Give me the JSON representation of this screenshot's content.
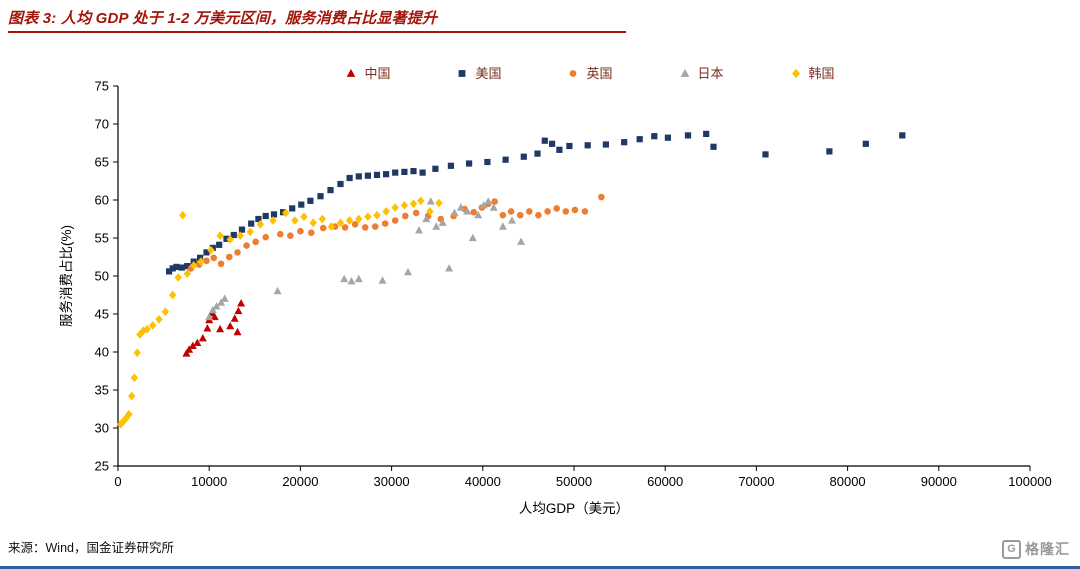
{
  "page": {
    "title_color": "#A31508",
    "source": "来源：Wind，国金证券研究所",
    "logo_text": "格隆汇",
    "logo_icon_letter": "G",
    "bottom_bar_color": "#2E5FA3"
  },
  "chart_data": {
    "type": "scatter",
    "title": "图表 3: 人均 GDP 处于 1-2 万美元区间，服务消费占比显著提升",
    "xlabel": "人均GDP（美元）",
    "ylabel": "服务消费占比(%)",
    "xlim": [
      0,
      100000
    ],
    "ylim": [
      25,
      75
    ],
    "x_ticks": [
      0,
      10000,
      20000,
      30000,
      40000,
      50000,
      60000,
      70000,
      80000,
      90000,
      100000
    ],
    "y_ticks": [
      25,
      30,
      35,
      40,
      45,
      50,
      55,
      60,
      65,
      70,
      75
    ],
    "grid": false,
    "legend_position": "top",
    "legend_text_color": "#7A2E1D",
    "series": [
      {
        "name": "中国",
        "marker": "triangle",
        "color": "#C00000",
        "points": [
          [
            7500,
            39.8
          ],
          [
            7800,
            40.3
          ],
          [
            8200,
            40.8
          ],
          [
            8700,
            41.2
          ],
          [
            9300,
            41.8
          ],
          [
            9800,
            43.1
          ],
          [
            10000,
            44.2
          ],
          [
            10300,
            45.1
          ],
          [
            10600,
            44.6
          ],
          [
            11200,
            43.0
          ],
          [
            12300,
            43.4
          ],
          [
            12800,
            44.4
          ],
          [
            13100,
            42.6
          ],
          [
            13200,
            45.4
          ],
          [
            13500,
            46.4
          ]
        ]
      },
      {
        "name": "美国",
        "marker": "square",
        "color": "#1F3864",
        "points": [
          [
            5600,
            50.6
          ],
          [
            6000,
            51.0
          ],
          [
            6400,
            51.2
          ],
          [
            7000,
            51.1
          ],
          [
            7600,
            51.3
          ],
          [
            8300,
            51.9
          ],
          [
            9000,
            52.4
          ],
          [
            9700,
            53.1
          ],
          [
            10400,
            53.7
          ],
          [
            11100,
            54.1
          ],
          [
            11900,
            54.9
          ],
          [
            12700,
            55.4
          ],
          [
            13600,
            56.1
          ],
          [
            14600,
            56.9
          ],
          [
            15400,
            57.5
          ],
          [
            16200,
            57.9
          ],
          [
            17100,
            58.1
          ],
          [
            18100,
            58.4
          ],
          [
            19100,
            58.9
          ],
          [
            20100,
            59.4
          ],
          [
            21100,
            59.9
          ],
          [
            22200,
            60.5
          ],
          [
            23300,
            61.3
          ],
          [
            24400,
            62.1
          ],
          [
            25400,
            62.9
          ],
          [
            26400,
            63.1
          ],
          [
            27400,
            63.2
          ],
          [
            28400,
            63.3
          ],
          [
            29400,
            63.4
          ],
          [
            30400,
            63.6
          ],
          [
            31400,
            63.7
          ],
          [
            32400,
            63.8
          ],
          [
            33400,
            63.6
          ],
          [
            34800,
            64.1
          ],
          [
            36500,
            64.5
          ],
          [
            38500,
            64.8
          ],
          [
            40500,
            65.0
          ],
          [
            42500,
            65.3
          ],
          [
            44500,
            65.7
          ],
          [
            46000,
            66.1
          ],
          [
            46800,
            67.8
          ],
          [
            47600,
            67.4
          ],
          [
            48400,
            66.6
          ],
          [
            49500,
            67.1
          ],
          [
            51500,
            67.2
          ],
          [
            53500,
            67.3
          ],
          [
            55500,
            67.6
          ],
          [
            57200,
            68.0
          ],
          [
            58800,
            68.4
          ],
          [
            60300,
            68.2
          ],
          [
            62500,
            68.5
          ],
          [
            64500,
            68.7
          ],
          [
            65300,
            67.0
          ],
          [
            71000,
            66.0
          ],
          [
            78000,
            66.4
          ],
          [
            82000,
            67.4
          ],
          [
            86000,
            68.5
          ]
        ]
      },
      {
        "name": "英国",
        "marker": "circle",
        "color": "#ED7D31",
        "points": [
          [
            8000,
            51.0
          ],
          [
            8900,
            51.5
          ],
          [
            9700,
            52.0
          ],
          [
            10500,
            52.4
          ],
          [
            11300,
            51.6
          ],
          [
            12200,
            52.5
          ],
          [
            13100,
            53.1
          ],
          [
            14100,
            54.0
          ],
          [
            15100,
            54.5
          ],
          [
            16200,
            55.1
          ],
          [
            17800,
            55.5
          ],
          [
            18900,
            55.3
          ],
          [
            20000,
            55.9
          ],
          [
            21200,
            55.7
          ],
          [
            22500,
            56.3
          ],
          [
            23800,
            56.5
          ],
          [
            24900,
            56.4
          ],
          [
            26000,
            56.8
          ],
          [
            27100,
            56.4
          ],
          [
            28200,
            56.5
          ],
          [
            29300,
            56.9
          ],
          [
            30400,
            57.3
          ],
          [
            31500,
            57.9
          ],
          [
            32700,
            58.3
          ],
          [
            34000,
            57.9
          ],
          [
            35400,
            57.5
          ],
          [
            36800,
            57.9
          ],
          [
            38000,
            58.8
          ],
          [
            39000,
            58.4
          ],
          [
            39900,
            59.0
          ],
          [
            40600,
            59.5
          ],
          [
            41300,
            59.8
          ],
          [
            42200,
            58.0
          ],
          [
            43100,
            58.5
          ],
          [
            44100,
            58.0
          ],
          [
            45100,
            58.5
          ],
          [
            46100,
            58.0
          ],
          [
            47100,
            58.5
          ],
          [
            48100,
            58.9
          ],
          [
            49100,
            58.5
          ],
          [
            50100,
            58.7
          ],
          [
            51200,
            58.5
          ],
          [
            53000,
            60.4
          ]
        ]
      },
      {
        "name": "日本",
        "marker": "triangle",
        "color": "#A6A6A6",
        "points": [
          [
            10000,
            44.6
          ],
          [
            10400,
            45.5
          ],
          [
            10800,
            46.0
          ],
          [
            11300,
            46.5
          ],
          [
            11700,
            47.0
          ],
          [
            17500,
            48.0
          ],
          [
            24800,
            49.6
          ],
          [
            25600,
            49.3
          ],
          [
            26400,
            49.6
          ],
          [
            29000,
            49.4
          ],
          [
            31800,
            50.5
          ],
          [
            33000,
            56.0
          ],
          [
            33800,
            57.5
          ],
          [
            34300,
            59.8
          ],
          [
            34900,
            56.5
          ],
          [
            35600,
            57.0
          ],
          [
            36300,
            51.0
          ],
          [
            36900,
            58.3
          ],
          [
            37600,
            59.0
          ],
          [
            38300,
            58.5
          ],
          [
            38900,
            55.0
          ],
          [
            39500,
            58.0
          ],
          [
            40100,
            59.3
          ],
          [
            40600,
            59.8
          ],
          [
            41200,
            59.0
          ],
          [
            42200,
            56.5
          ],
          [
            43200,
            57.3
          ],
          [
            44200,
            54.5
          ]
        ]
      },
      {
        "name": "韩国",
        "marker": "diamond",
        "color": "#FFC000",
        "points": [
          [
            300,
            30.5
          ],
          [
            600,
            30.9
          ],
          [
            900,
            31.3
          ],
          [
            1200,
            31.8
          ],
          [
            1500,
            34.2
          ],
          [
            1800,
            36.6
          ],
          [
            2100,
            39.9
          ],
          [
            2400,
            42.3
          ],
          [
            2800,
            42.8
          ],
          [
            3200,
            43.0
          ],
          [
            3800,
            43.5
          ],
          [
            4500,
            44.3
          ],
          [
            5200,
            45.3
          ],
          [
            6000,
            47.5
          ],
          [
            6600,
            49.8
          ],
          [
            7100,
            58.0
          ],
          [
            7600,
            50.3
          ],
          [
            8300,
            51.4
          ],
          [
            9100,
            51.9
          ],
          [
            10200,
            53.4
          ],
          [
            11200,
            55.3
          ],
          [
            12300,
            54.8
          ],
          [
            13400,
            55.3
          ],
          [
            14500,
            55.8
          ],
          [
            15600,
            56.8
          ],
          [
            17000,
            57.3
          ],
          [
            18400,
            58.3
          ],
          [
            19400,
            57.3
          ],
          [
            20400,
            57.8
          ],
          [
            21400,
            57.0
          ],
          [
            22400,
            57.5
          ],
          [
            23400,
            56.5
          ],
          [
            24400,
            57.0
          ],
          [
            25400,
            57.3
          ],
          [
            26400,
            57.5
          ],
          [
            27400,
            57.8
          ],
          [
            28400,
            58.0
          ],
          [
            29400,
            58.5
          ],
          [
            30400,
            59.0
          ],
          [
            31400,
            59.3
          ],
          [
            32400,
            59.5
          ],
          [
            33200,
            59.9
          ],
          [
            34200,
            58.5
          ],
          [
            35200,
            59.6
          ]
        ]
      }
    ]
  }
}
